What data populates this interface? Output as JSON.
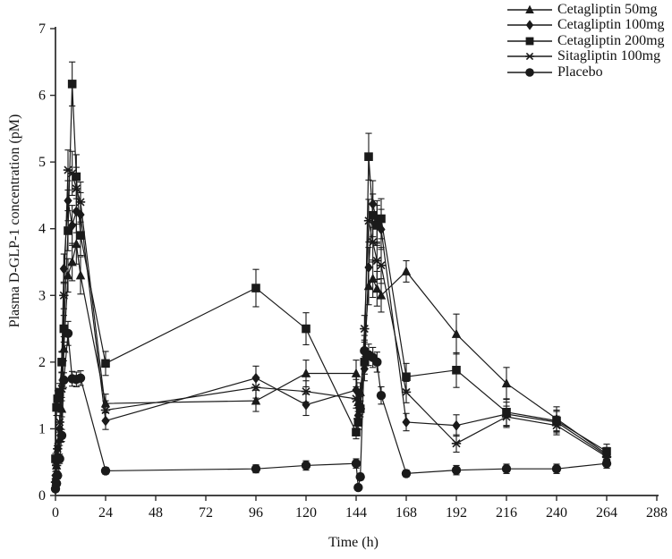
{
  "figure": {
    "background_color": "#ffffff",
    "line_color": "#1a1a1a",
    "axis_color": "#2a2a2a"
  },
  "chart_data": {
    "type": "line",
    "title": "",
    "xlabel": "Time (h)",
    "ylabel": "Plasma D-GLP-1 concentration (pM)",
    "grid": false,
    "legend_position": "top-right",
    "error_bars": true,
    "x_axis": {
      "min": 0,
      "max": 288,
      "ticks": [
        0,
        24,
        48,
        72,
        96,
        120,
        144,
        168,
        192,
        216,
        240,
        264,
        288
      ]
    },
    "y_axis": {
      "min": 0,
      "max": 7,
      "ticks": [
        0,
        1,
        2,
        3,
        4,
        5,
        6,
        7
      ]
    },
    "x": [
      0,
      0.5,
      1,
      2,
      3,
      4,
      6,
      8,
      10,
      12,
      24,
      96,
      120,
      144,
      145,
      146,
      148,
      150,
      152,
      154,
      156,
      168,
      192,
      216,
      240,
      264
    ],
    "series": [
      {
        "name": "Cetaglipt​in 50mg",
        "marker": "triangle",
        "values": [
          0.25,
          0.45,
          0.6,
          0.85,
          1.3,
          2.2,
          3.3,
          3.5,
          3.77,
          3.3,
          1.38,
          1.42,
          1.83,
          1.83,
          1.4,
          1.55,
          2.2,
          3.14,
          3.25,
          3.1,
          3.0,
          3.36,
          2.42,
          1.68,
          1.15,
          0.62
        ],
        "errors": [
          0.06,
          0.08,
          0.08,
          0.1,
          0.12,
          0.18,
          0.25,
          0.28,
          0.3,
          0.28,
          0.14,
          0.16,
          0.2,
          0.2,
          0.14,
          0.14,
          0.2,
          0.28,
          0.28,
          0.26,
          0.25,
          0.16,
          0.3,
          0.24,
          0.18,
          0.1
        ]
      },
      {
        "name": "Cetagliptin 100mg",
        "marker": "diamond",
        "values": [
          0.3,
          0.5,
          0.7,
          1.0,
          2.0,
          3.4,
          4.42,
          4.05,
          4.26,
          4.21,
          1.12,
          1.76,
          1.36,
          1.58,
          1.2,
          1.35,
          1.9,
          3.42,
          4.37,
          4.1,
          3.99,
          1.1,
          1.05,
          1.22,
          1.1,
          0.6
        ],
        "errors": [
          0.06,
          0.08,
          0.08,
          0.1,
          0.15,
          0.22,
          0.3,
          0.3,
          0.32,
          0.33,
          0.13,
          0.18,
          0.16,
          0.16,
          0.12,
          0.13,
          0.18,
          0.3,
          0.35,
          0.32,
          0.3,
          0.13,
          0.16,
          0.18,
          0.16,
          0.1
        ]
      },
      {
        "name": "Cetagliptin 200mg",
        "marker": "square",
        "values": [
          0.55,
          1.32,
          1.45,
          1.55,
          2.0,
          2.5,
          3.97,
          6.17,
          4.78,
          3.9,
          1.98,
          3.11,
          2.5,
          0.95,
          1.1,
          1.3,
          2.0,
          5.08,
          4.2,
          4.05,
          4.15,
          1.78,
          1.88,
          1.25,
          1.12,
          0.66
        ],
        "errors": [
          0.08,
          0.12,
          0.12,
          0.13,
          0.16,
          0.2,
          0.3,
          0.33,
          0.33,
          0.3,
          0.18,
          0.28,
          0.24,
          0.1,
          0.11,
          0.12,
          0.18,
          0.35,
          0.32,
          0.3,
          0.3,
          0.2,
          0.26,
          0.2,
          0.16,
          0.11
        ]
      },
      {
        "name": "Sitagliptin 100mg",
        "marker": "asterisk",
        "values": [
          0.2,
          0.45,
          0.7,
          1.1,
          1.6,
          3.0,
          4.88,
          4.83,
          4.6,
          4.4,
          1.28,
          1.62,
          1.56,
          1.45,
          1.15,
          1.3,
          2.5,
          4.12,
          3.8,
          3.52,
          3.45,
          1.55,
          0.78,
          1.18,
          1.05,
          0.58
        ],
        "errors": [
          0.06,
          0.08,
          0.08,
          0.1,
          0.13,
          0.2,
          0.3,
          0.33,
          0.32,
          0.3,
          0.14,
          0.16,
          0.16,
          0.14,
          0.11,
          0.12,
          0.2,
          0.32,
          0.3,
          0.28,
          0.27,
          0.16,
          0.13,
          0.16,
          0.14,
          0.09
        ]
      },
      {
        "name": "Placebo",
        "marker": "circle",
        "values": [
          0.1,
          0.18,
          0.3,
          0.55,
          0.9,
          1.73,
          2.43,
          1.75,
          1.74,
          1.76,
          0.37,
          0.4,
          0.45,
          0.48,
          0.12,
          0.28,
          2.17,
          2.11,
          2.07,
          2.0,
          1.5,
          0.33,
          0.38,
          0.4,
          0.4,
          0.48
        ],
        "errors": [
          0.03,
          0.04,
          0.05,
          0.07,
          0.09,
          0.11,
          0.18,
          0.11,
          0.11,
          0.11,
          0.05,
          0.06,
          0.07,
          0.07,
          0.04,
          0.05,
          0.16,
          0.16,
          0.15,
          0.15,
          0.13,
          0.05,
          0.07,
          0.07,
          0.07,
          0.07
        ]
      }
    ]
  }
}
